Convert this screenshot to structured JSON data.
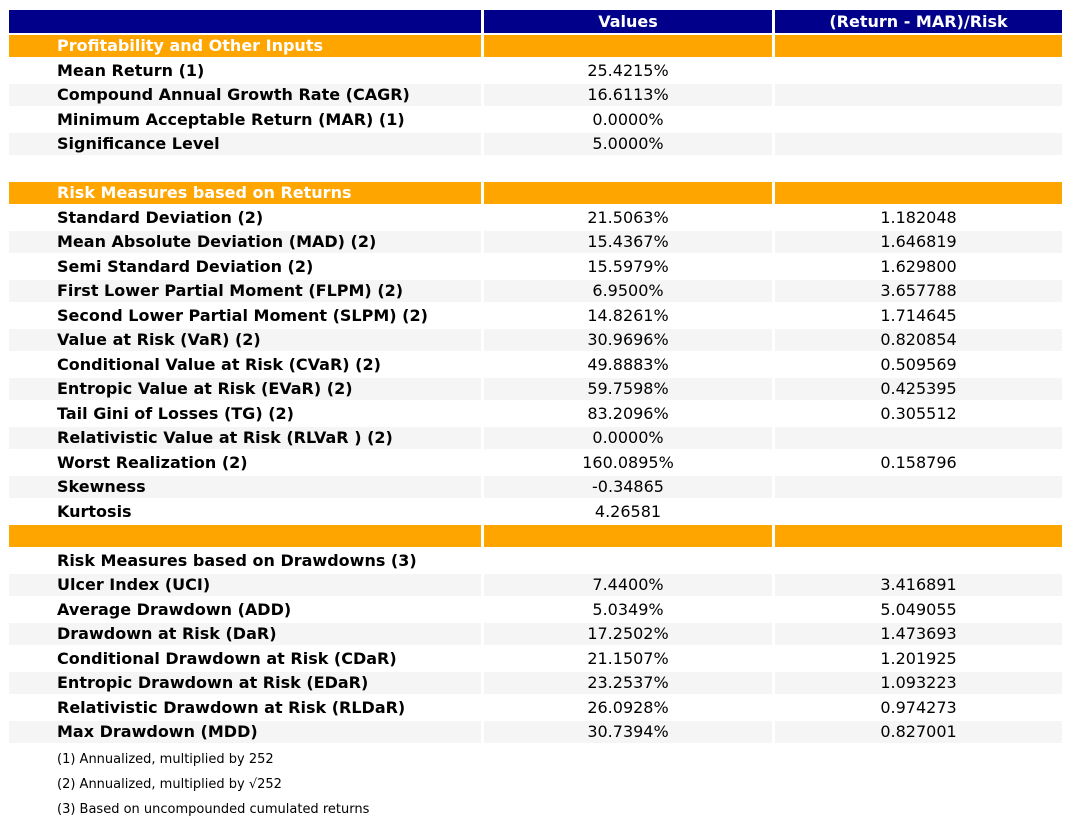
{
  "colors": {
    "header_bg": "#00008B",
    "header_text": "#FFFFFF",
    "section_bg": "#FFA500",
    "section_text": "#FFFFFF",
    "stripe_bg": "#F5F5F5",
    "body_text": "#000000"
  },
  "chart_data": {
    "type": "table",
    "columns": [
      "",
      "Values",
      "(Return - MAR)/Risk"
    ],
    "rows": [
      {
        "kind": "section",
        "label": "Profitability and Other Inputs"
      },
      {
        "kind": "data",
        "label": "Mean Return (1)",
        "value": "25.4215%",
        "ratio": ""
      },
      {
        "kind": "data",
        "label": "Compound Annual Growth Rate (CAGR)",
        "value": "16.6113%",
        "ratio": ""
      },
      {
        "kind": "data",
        "label": "Minimum Acceptable Return (MAR) (1)",
        "value": "0.0000%",
        "ratio": ""
      },
      {
        "kind": "data",
        "label": "Significance Level",
        "value": "5.0000%",
        "ratio": ""
      },
      {
        "kind": "spacer"
      },
      {
        "kind": "section",
        "label": "Risk Measures based on Returns"
      },
      {
        "kind": "data",
        "label": "Standard Deviation (2)",
        "value": "21.5063%",
        "ratio": "1.182048"
      },
      {
        "kind": "data",
        "label": "Mean Absolute Deviation (MAD) (2)",
        "value": "15.4367%",
        "ratio": "1.646819"
      },
      {
        "kind": "data",
        "label": "Semi Standard Deviation (2)",
        "value": "15.5979%",
        "ratio": "1.629800"
      },
      {
        "kind": "data",
        "label": "First Lower Partial Moment (FLPM) (2)",
        "value": "6.9500%",
        "ratio": "3.657788"
      },
      {
        "kind": "data",
        "label": "Second Lower Partial Moment (SLPM) (2)",
        "value": "14.8261%",
        "ratio": "1.714645"
      },
      {
        "kind": "data",
        "label": "Value at Risk (VaR) (2)",
        "value": "30.9696%",
        "ratio": "0.820854"
      },
      {
        "kind": "data",
        "label": "Conditional Value at Risk (CVaR) (2)",
        "value": "49.8883%",
        "ratio": "0.509569"
      },
      {
        "kind": "data",
        "label": "Entropic Value at Risk (EVaR) (2)",
        "value": "59.7598%",
        "ratio": "0.425395"
      },
      {
        "kind": "data",
        "label": "Tail Gini of Losses (TG) (2)",
        "value": "83.2096%",
        "ratio": "0.305512"
      },
      {
        "kind": "data",
        "label": "Relativistic Value at Risk (RLVaR ) (2)",
        "value": "0.0000%",
        "ratio": ""
      },
      {
        "kind": "data",
        "label": "Worst Realization (2)",
        "value": "160.0895%",
        "ratio": "0.158796"
      },
      {
        "kind": "data",
        "label": "Skewness",
        "value": "-0.34865",
        "ratio": ""
      },
      {
        "kind": "data",
        "label": "Kurtosis",
        "value": "4.26581",
        "ratio": ""
      },
      {
        "kind": "section",
        "label": ""
      },
      {
        "kind": "title",
        "label": "Risk Measures based on Drawdowns (3)",
        "value": "",
        "ratio": ""
      },
      {
        "kind": "data",
        "label": "Ulcer Index (UCI)",
        "value": "7.4400%",
        "ratio": "3.416891"
      },
      {
        "kind": "data",
        "label": "Average Drawdown (ADD)",
        "value": "5.0349%",
        "ratio": "5.049055"
      },
      {
        "kind": "data",
        "label": "Drawdown at Risk (DaR)",
        "value": "17.2502%",
        "ratio": "1.473693"
      },
      {
        "kind": "data",
        "label": "Conditional Drawdown at Risk (CDaR)",
        "value": "21.1507%",
        "ratio": "1.201925"
      },
      {
        "kind": "data",
        "label": "Entropic Drawdown at Risk (EDaR)",
        "value": "23.2537%",
        "ratio": "1.093223"
      },
      {
        "kind": "data",
        "label": "Relativistic Drawdown at Risk (RLDaR)",
        "value": "26.0928%",
        "ratio": "0.974273"
      },
      {
        "kind": "data",
        "label": "Max Drawdown (MDD)",
        "value": "30.7394%",
        "ratio": "0.827001"
      }
    ],
    "footnotes": [
      "(1) Annualized, multiplied by 252",
      "(2) Annualized, multiplied by √252",
      "(3) Based on uncompounded cumulated returns"
    ]
  }
}
